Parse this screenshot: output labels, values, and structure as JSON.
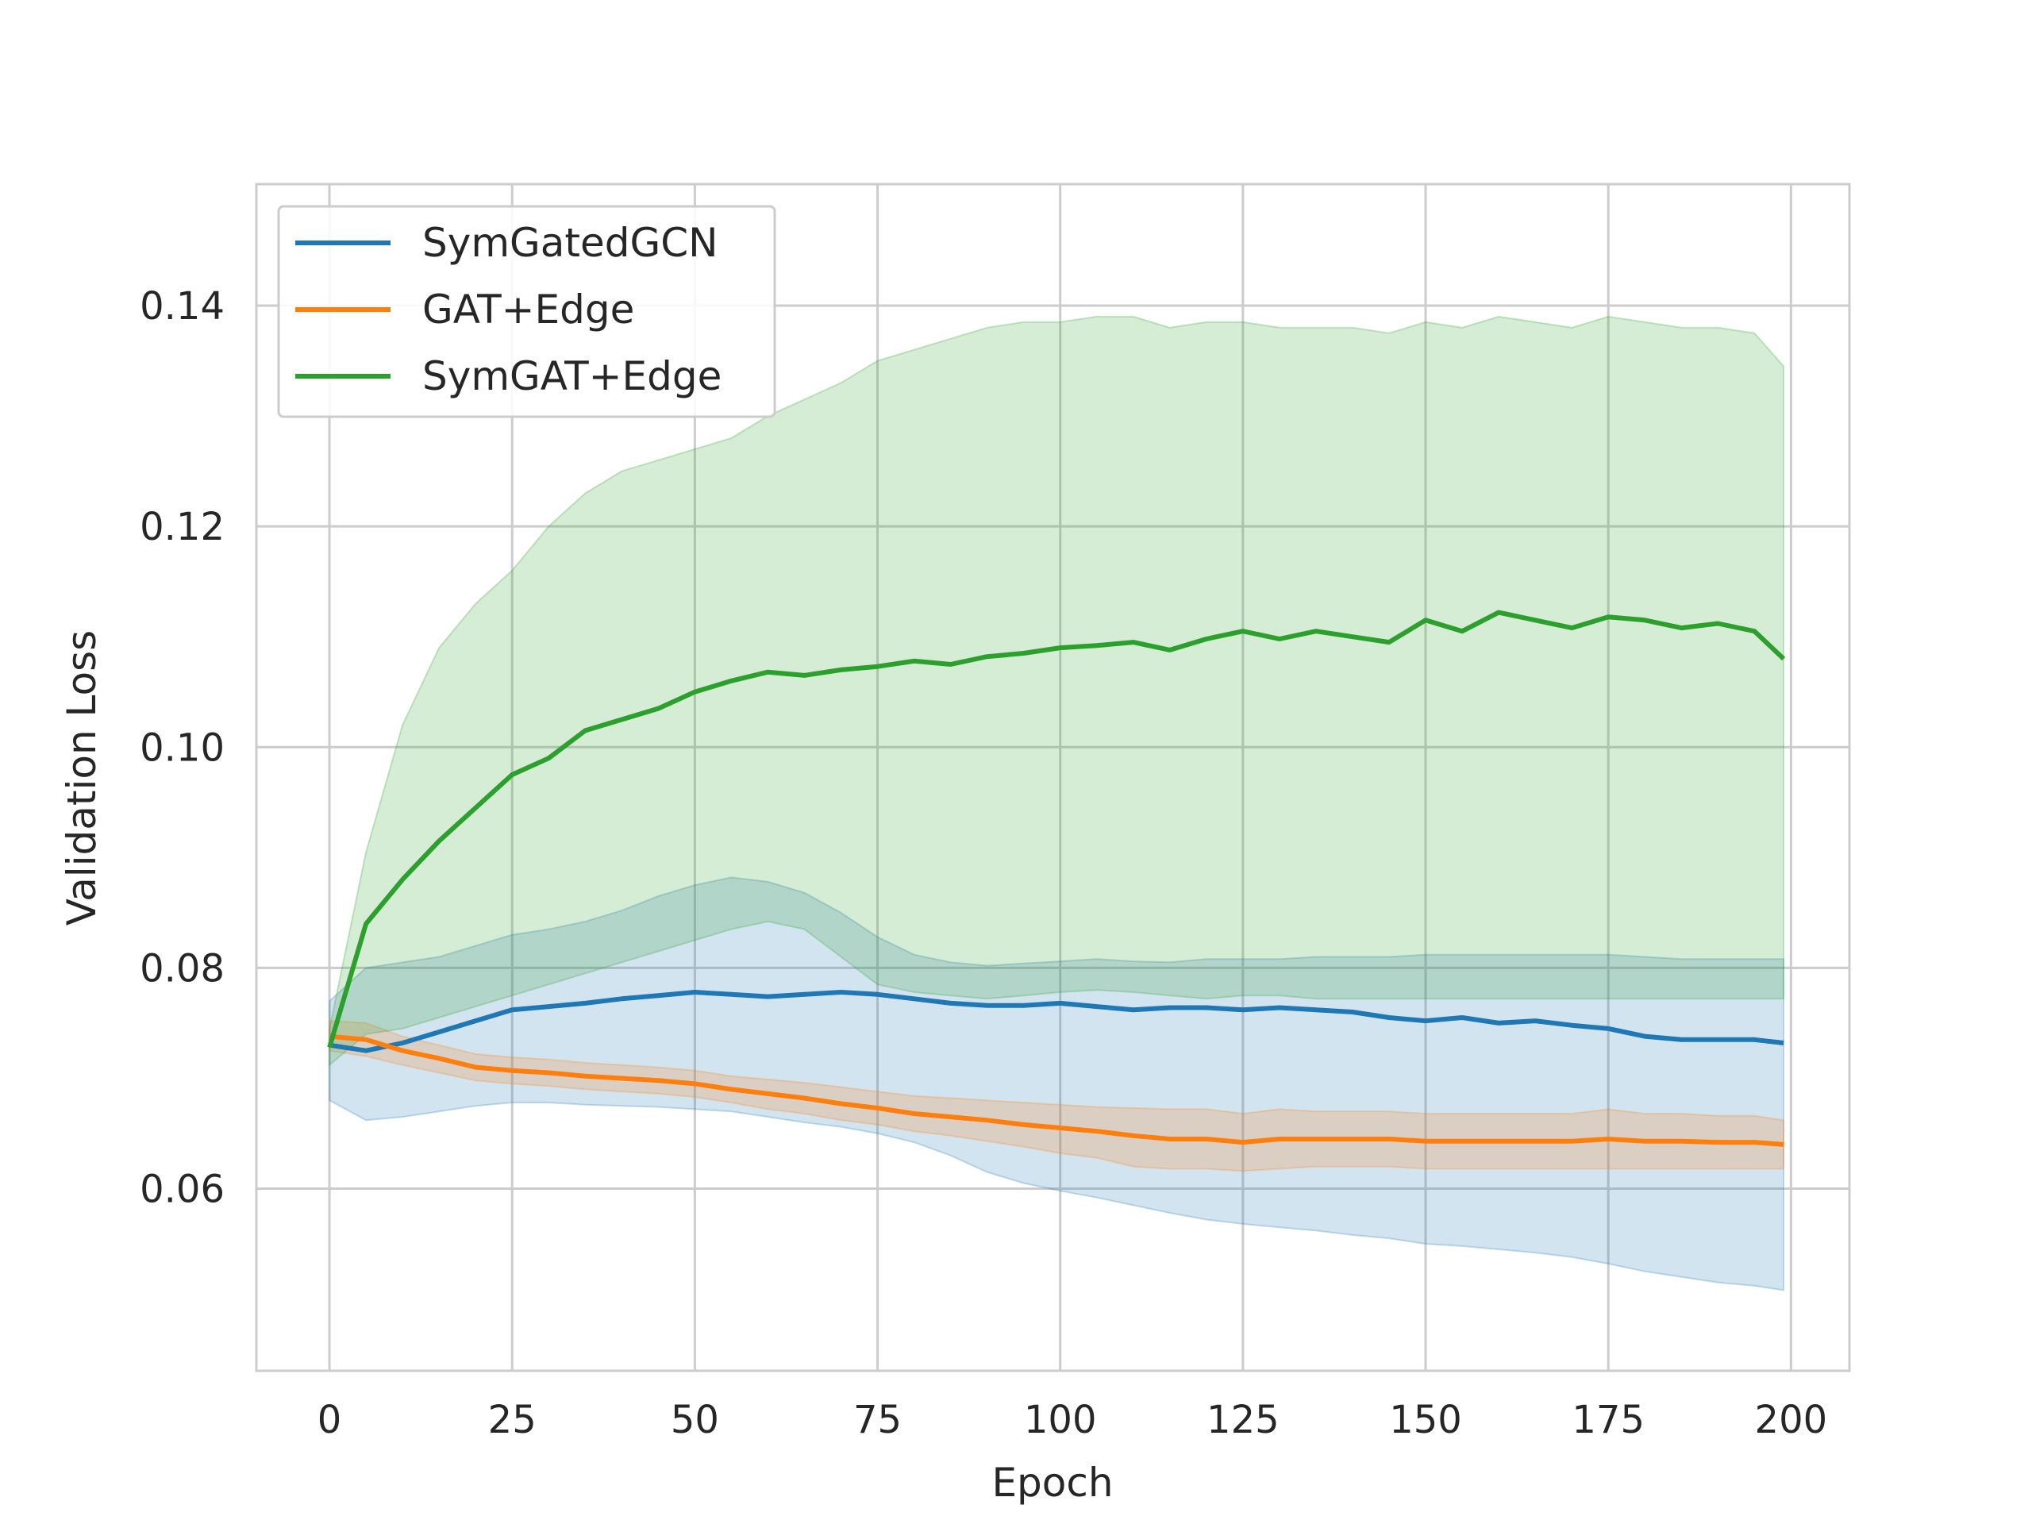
{
  "chart_data": {
    "type": "line",
    "xlabel": "Epoch",
    "ylabel": "Validation Loss",
    "xlim": [
      -10,
      208
    ],
    "ylim": [
      0.0435,
      0.151
    ],
    "xticks": [
      0,
      25,
      50,
      75,
      100,
      125,
      150,
      175,
      200
    ],
    "xtick_labels": [
      "0",
      "25",
      "50",
      "75",
      "100",
      "125",
      "150",
      "175",
      "200"
    ],
    "yticks": [
      0.06,
      0.08,
      0.1,
      0.12,
      0.14
    ],
    "ytick_labels": [
      "0.06",
      "0.08",
      "0.10",
      "0.12",
      "0.14"
    ],
    "grid": true,
    "legend_position": "top-left",
    "x": [
      0,
      5,
      10,
      15,
      20,
      25,
      30,
      35,
      40,
      45,
      50,
      55,
      60,
      65,
      70,
      75,
      80,
      85,
      90,
      95,
      100,
      105,
      110,
      115,
      120,
      125,
      130,
      135,
      140,
      145,
      150,
      155,
      160,
      165,
      170,
      175,
      180,
      185,
      190,
      195,
      199
    ],
    "series": [
      {
        "name": "SymGatedGCN",
        "color": "#1f77b4",
        "values": [
          0.073,
          0.0725,
          0.0732,
          0.0742,
          0.0752,
          0.0762,
          0.0765,
          0.0768,
          0.0772,
          0.0775,
          0.0778,
          0.0776,
          0.0774,
          0.0776,
          0.0778,
          0.0776,
          0.0772,
          0.0768,
          0.0766,
          0.0766,
          0.0768,
          0.0765,
          0.0762,
          0.0764,
          0.0764,
          0.0762,
          0.0764,
          0.0762,
          0.076,
          0.0755,
          0.0752,
          0.0755,
          0.075,
          0.0752,
          0.0748,
          0.0745,
          0.0738,
          0.0735,
          0.0735,
          0.0735,
          0.0732
        ],
        "band_lower": [
          0.068,
          0.0662,
          0.0665,
          0.067,
          0.0675,
          0.0678,
          0.0678,
          0.0676,
          0.0675,
          0.0674,
          0.0672,
          0.067,
          0.0665,
          0.066,
          0.0656,
          0.065,
          0.0642,
          0.063,
          0.0615,
          0.0605,
          0.0598,
          0.0592,
          0.0585,
          0.0578,
          0.0572,
          0.0568,
          0.0565,
          0.0562,
          0.0558,
          0.0555,
          0.055,
          0.0548,
          0.0545,
          0.0542,
          0.0538,
          0.0532,
          0.0525,
          0.052,
          0.0515,
          0.0512,
          0.0508
        ],
        "band_upper": [
          0.077,
          0.08,
          0.0805,
          0.081,
          0.082,
          0.083,
          0.0835,
          0.0842,
          0.0852,
          0.0865,
          0.0875,
          0.0882,
          0.0878,
          0.0868,
          0.085,
          0.0828,
          0.0812,
          0.0805,
          0.0802,
          0.0804,
          0.0806,
          0.0808,
          0.0806,
          0.0805,
          0.0808,
          0.0808,
          0.0808,
          0.081,
          0.081,
          0.081,
          0.0812,
          0.0812,
          0.0812,
          0.0812,
          0.0812,
          0.0812,
          0.081,
          0.0808,
          0.0808,
          0.0808,
          0.0808
        ]
      },
      {
        "name": "GAT+Edge",
        "color": "#ff7f0e",
        "values": [
          0.0738,
          0.0735,
          0.0725,
          0.0718,
          0.071,
          0.0707,
          0.0705,
          0.0702,
          0.07,
          0.0698,
          0.0695,
          0.069,
          0.0686,
          0.0682,
          0.0677,
          0.0673,
          0.0668,
          0.0665,
          0.0662,
          0.0658,
          0.0655,
          0.0652,
          0.0648,
          0.0645,
          0.0645,
          0.0642,
          0.0645,
          0.0645,
          0.0645,
          0.0645,
          0.0643,
          0.0643,
          0.0643,
          0.0643,
          0.0643,
          0.0645,
          0.0643,
          0.0643,
          0.0642,
          0.0642,
          0.064
        ],
        "band_lower": [
          0.0725,
          0.072,
          0.0712,
          0.0705,
          0.0698,
          0.0695,
          0.0693,
          0.069,
          0.0688,
          0.0686,
          0.0683,
          0.0678,
          0.0672,
          0.0668,
          0.0662,
          0.0658,
          0.0652,
          0.0648,
          0.0643,
          0.0638,
          0.0632,
          0.0628,
          0.062,
          0.0618,
          0.0618,
          0.0616,
          0.0618,
          0.062,
          0.062,
          0.062,
          0.0618,
          0.0618,
          0.0618,
          0.0618,
          0.0618,
          0.0618,
          0.0618,
          0.0618,
          0.0618,
          0.0618,
          0.0618
        ],
        "band_upper": [
          0.0752,
          0.075,
          0.0738,
          0.073,
          0.0722,
          0.0719,
          0.0717,
          0.0714,
          0.0712,
          0.071,
          0.0707,
          0.0702,
          0.0699,
          0.0696,
          0.0692,
          0.0688,
          0.0684,
          0.0682,
          0.068,
          0.0678,
          0.0676,
          0.0674,
          0.0673,
          0.0672,
          0.0672,
          0.0668,
          0.0672,
          0.067,
          0.067,
          0.067,
          0.0668,
          0.0668,
          0.0668,
          0.0668,
          0.0668,
          0.0672,
          0.0668,
          0.0668,
          0.0666,
          0.0666,
          0.0662
        ]
      },
      {
        "name": "SymGAT+Edge",
        "color": "#2ca02c",
        "values": [
          0.0728,
          0.084,
          0.088,
          0.0915,
          0.0945,
          0.0975,
          0.099,
          0.1015,
          0.1025,
          0.1035,
          0.105,
          0.106,
          0.1068,
          0.1065,
          0.107,
          0.1073,
          0.1078,
          0.1075,
          0.1082,
          0.1085,
          0.109,
          0.1092,
          0.1095,
          0.1088,
          0.1098,
          0.1105,
          0.1098,
          0.1105,
          0.11,
          0.1095,
          0.1115,
          0.1105,
          0.1122,
          0.1115,
          0.1108,
          0.1118,
          0.1115,
          0.1108,
          0.1112,
          0.1105,
          0.108
        ],
        "band_lower": [
          0.0712,
          0.074,
          0.0745,
          0.0755,
          0.0765,
          0.0775,
          0.0785,
          0.0795,
          0.0805,
          0.0815,
          0.0825,
          0.0835,
          0.0842,
          0.0835,
          0.081,
          0.0785,
          0.0778,
          0.0775,
          0.0772,
          0.0775,
          0.0778,
          0.078,
          0.0778,
          0.0775,
          0.0772,
          0.0775,
          0.0775,
          0.0772,
          0.0772,
          0.0772,
          0.0772,
          0.0772,
          0.0772,
          0.0772,
          0.0772,
          0.0772,
          0.0772,
          0.0772,
          0.0772,
          0.0772,
          0.0772
        ],
        "band_upper": [
          0.0745,
          0.0905,
          0.102,
          0.109,
          0.113,
          0.116,
          0.12,
          0.123,
          0.125,
          0.126,
          0.127,
          0.128,
          0.13,
          0.1315,
          0.133,
          0.135,
          0.136,
          0.137,
          0.138,
          0.1385,
          0.1385,
          0.139,
          0.139,
          0.138,
          0.1385,
          0.1385,
          0.138,
          0.138,
          0.138,
          0.1375,
          0.1385,
          0.138,
          0.139,
          0.1385,
          0.138,
          0.139,
          0.1385,
          0.138,
          0.138,
          0.1375,
          0.1345
        ]
      }
    ]
  }
}
